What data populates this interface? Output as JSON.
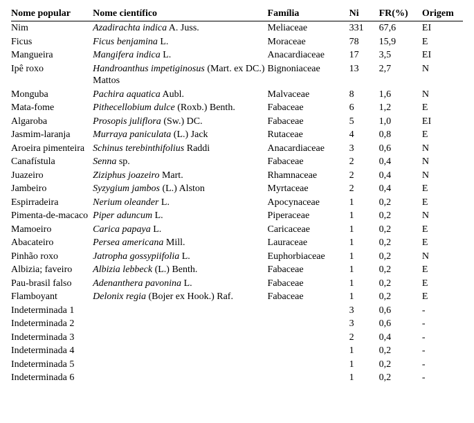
{
  "headers": {
    "popular": "Nome popular",
    "cientifico": "Nome científico",
    "familia": "Família",
    "ni": "Ni",
    "fr": "FR(%)",
    "origem": "Origem"
  },
  "rows": [
    {
      "popular": "Nim",
      "sci_italic": "Azadirachta indica",
      "sci_plain": " A. Juss.",
      "familia": "Meliaceae",
      "ni": "331",
      "fr": "67,6",
      "origem": "EI"
    },
    {
      "popular": "Ficus",
      "sci_italic": "Ficus benjamina",
      "sci_plain": " L.",
      "familia": "Moraceae",
      "ni": "78",
      "fr": "15,9",
      "origem": "E"
    },
    {
      "popular": "Mangueira",
      "sci_italic": "Mangifera indica",
      "sci_plain": " L.",
      "familia": "Anacardiaceae",
      "ni": "17",
      "fr": "3,5",
      "origem": "EI"
    },
    {
      "popular": "Ipê roxo",
      "sci_italic": "Handroanthus impetiginosus",
      "sci_plain": " (Mart. ex DC.) Mattos",
      "familia": "Bignoniaceae",
      "ni": "13",
      "fr": "2,7",
      "origem": "N"
    },
    {
      "popular": "Monguba",
      "sci_italic": "Pachira aquatica",
      "sci_plain": " Aubl.",
      "familia": "Malvaceae",
      "ni": "8",
      "fr": "1,6",
      "origem": "N"
    },
    {
      "popular": "Mata-fome",
      "sci_italic": "Pithecellobium dulce",
      "sci_plain": " (Roxb.) Benth.",
      "familia": "Fabaceae",
      "ni": "6",
      "fr": "1,2",
      "origem": "E"
    },
    {
      "popular": "Algaroba",
      "sci_italic": "Prosopis juliflora",
      "sci_plain": " (Sw.) DC.",
      "familia": "Fabaceae",
      "ni": "5",
      "fr": "1,0",
      "origem": "EI"
    },
    {
      "popular": "Jasmim-laranja",
      "sci_italic": "Murraya paniculata",
      "sci_plain": " (L.) Jack",
      "familia": "Rutaceae",
      "ni": "4",
      "fr": "0,8",
      "origem": "E"
    },
    {
      "popular": "Aroeira pimenteira",
      "sci_italic": "Schinus terebinthifolius",
      "sci_plain": " Raddi",
      "familia": "Anacardiaceae",
      "ni": "3",
      "fr": "0,6",
      "origem": "N"
    },
    {
      "popular": "Canafístula",
      "sci_italic": "Senna",
      "sci_plain": " sp.",
      "familia": "Fabaceae",
      "ni": "2",
      "fr": "0,4",
      "origem": "N"
    },
    {
      "popular": "Juazeiro",
      "sci_italic": "Ziziphus joazeiro",
      "sci_plain": " Mart.",
      "familia": "Rhamnaceae",
      "ni": "2",
      "fr": "0,4",
      "origem": "N"
    },
    {
      "popular": "Jambeiro",
      "sci_italic": "Syzygium jambos",
      "sci_plain": " (L.) Alston",
      "familia": "Myrtaceae",
      "ni": "2",
      "fr": "0,4",
      "origem": "E"
    },
    {
      "popular": "Espirradeira",
      "sci_italic": "Nerium oleander",
      "sci_plain": " L.",
      "familia": "Apocynaceae",
      "ni": "1",
      "fr": "0,2",
      "origem": "E"
    },
    {
      "popular": "Pimenta-de-macaco",
      "sci_italic": "Piper aduncum",
      "sci_plain": " L.",
      "familia": "Piperaceae",
      "ni": "1",
      "fr": "0,2",
      "origem": "N"
    },
    {
      "popular": "Mamoeiro",
      "sci_italic": "Carica papaya",
      "sci_plain": " L.",
      "familia": "Caricaceae",
      "ni": "1",
      "fr": "0,2",
      "origem": "E"
    },
    {
      "popular": "Abacateiro",
      "sci_italic": "Persea americana",
      "sci_plain": " Mill.",
      "familia": "Lauraceae",
      "ni": "1",
      "fr": "0,2",
      "origem": "E"
    },
    {
      "popular": "Pinhão roxo",
      "sci_italic": "Jatropha gossypiifolia",
      "sci_plain": " L.",
      "familia": "Euphorbiaceae",
      "ni": "1",
      "fr": "0,2",
      "origem": "N"
    },
    {
      "popular": "Albizia; faveiro",
      "sci_italic": "Albizia lebbeck ",
      "sci_plain": " (L.) Benth.",
      "familia": "Fabaceae",
      "ni": "1",
      "fr": "0,2",
      "origem": "E"
    },
    {
      "popular": "Pau-brasil falso",
      "sci_italic": "Adenanthera pavonina",
      "sci_plain": " L.",
      "familia": "Fabaceae",
      "ni": "1",
      "fr": "0,2",
      "origem": "E"
    },
    {
      "popular": "Flamboyant",
      "sci_italic": "Delonix regia ",
      "sci_plain": " (Bojer ex Hook.) Raf.",
      "familia": "Fabaceae",
      "ni": "1",
      "fr": "0,2",
      "origem": "E"
    },
    {
      "popular": "Indeterminada 1",
      "sci_italic": "",
      "sci_plain": "",
      "familia": "",
      "ni": "3",
      "fr": "0,6",
      "origem": "-"
    },
    {
      "popular": "Indeterminada 2",
      "sci_italic": "",
      "sci_plain": "",
      "familia": "",
      "ni": "3",
      "fr": "0,6",
      "origem": "-"
    },
    {
      "popular": "Indeterminada 3",
      "sci_italic": "",
      "sci_plain": "",
      "familia": "",
      "ni": "2",
      "fr": "0,4",
      "origem": "-"
    },
    {
      "popular": "Indeterminada 4",
      "sci_italic": "",
      "sci_plain": "",
      "familia": "",
      "ni": "1",
      "fr": "0,2",
      "origem": "-"
    },
    {
      "popular": "Indeterminada 5",
      "sci_italic": "",
      "sci_plain": "",
      "familia": "",
      "ni": "1",
      "fr": "0,2",
      "origem": "-"
    },
    {
      "popular": "Indeterminada 6",
      "sci_italic": "",
      "sci_plain": "",
      "familia": "",
      "ni": "1",
      "fr": "0,2",
      "origem": "-"
    }
  ]
}
